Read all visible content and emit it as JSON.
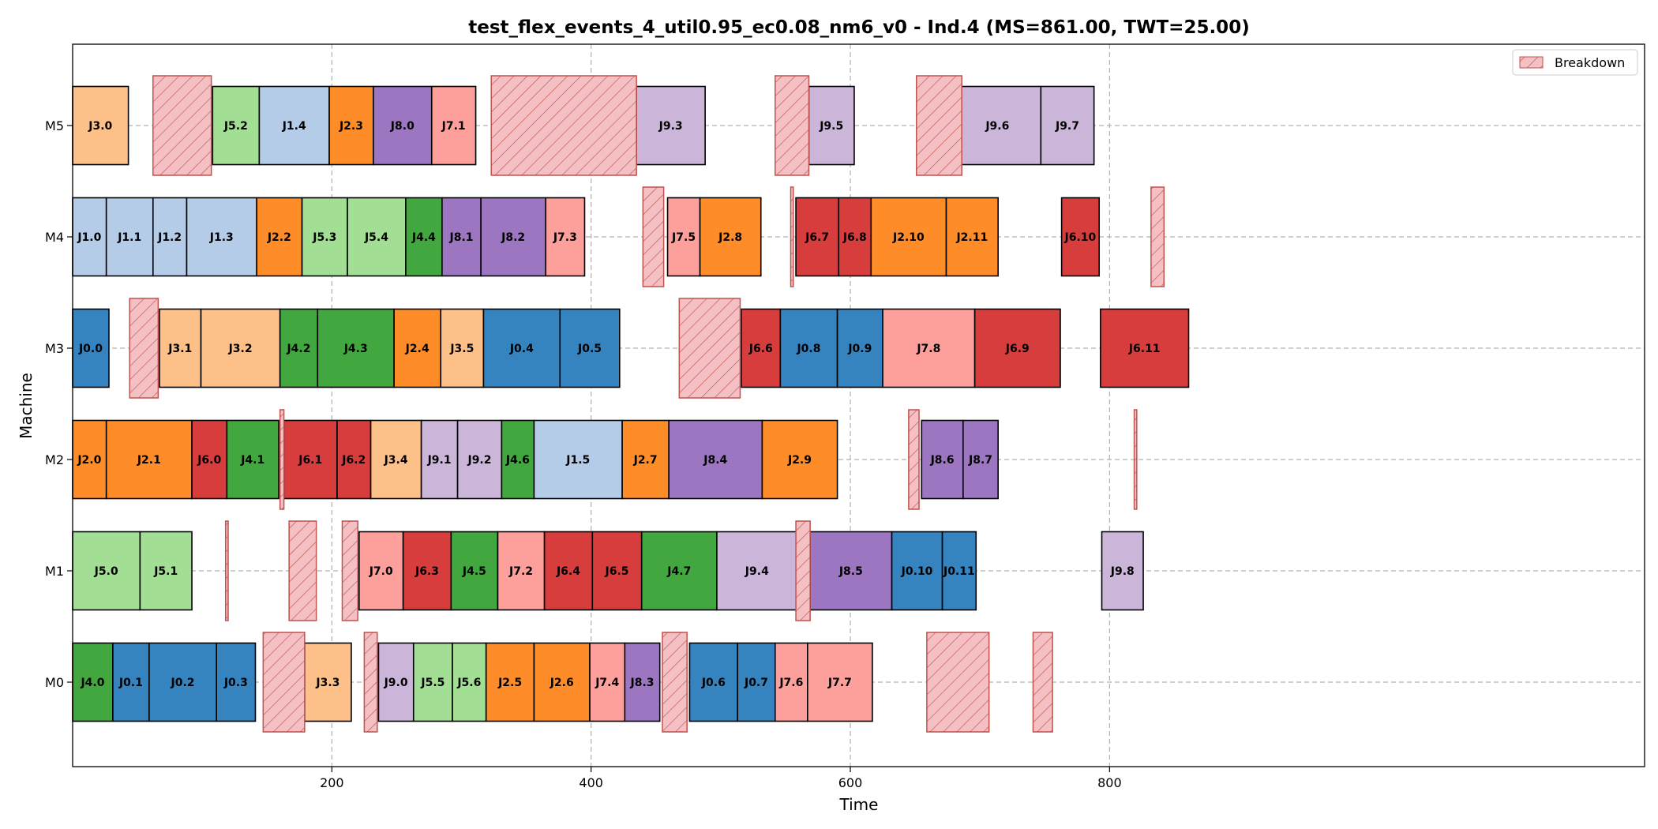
{
  "chart_data": {
    "type": "gantt",
    "title": "test_flex_events_4_util0.95_ec0.08_nm6_v0 - Ind.4 (MS=861.00, TWT=25.00)",
    "xlabel": "Time",
    "ylabel": "Machine",
    "xlim": [
      0,
      905
    ],
    "xticks": [
      200,
      400,
      600,
      800
    ],
    "machines": [
      "M0",
      "M1",
      "M2",
      "M3",
      "M4",
      "M5"
    ],
    "grid": true,
    "legend": {
      "position": "top-right",
      "label": "Breakdown"
    },
    "colors": {
      "J0": "#3584bf",
      "J1": "#b5cce9",
      "J2": "#fd8c29",
      "J3": "#fdc088",
      "J4": "#42a73f",
      "J5": "#a2de93",
      "J6": "#d83d3d",
      "J7": "#fd9f9b",
      "J8": "#9d76c2",
      "J9": "#cbb6da",
      "breakdown_fill": "#f4c0c3",
      "breakdown_edge": "#c0524f"
    },
    "operations": [
      {
        "m": "M0",
        "label": "J4.0",
        "job": "J4",
        "start": 0,
        "end": 31
      },
      {
        "m": "M0",
        "label": "J0.1",
        "job": "J0",
        "start": 31,
        "end": 59
      },
      {
        "m": "M0",
        "label": "J0.2",
        "job": "J0",
        "start": 59,
        "end": 111
      },
      {
        "m": "M0",
        "label": "J0.3",
        "job": "J0",
        "start": 111,
        "end": 141
      },
      {
        "m": "M0",
        "label": "J3.3",
        "job": "J3",
        "start": 179,
        "end": 215
      },
      {
        "m": "M0",
        "label": "J9.0",
        "job": "J9",
        "start": 236,
        "end": 263
      },
      {
        "m": "M0",
        "label": "J5.5",
        "job": "J5",
        "start": 263,
        "end": 293
      },
      {
        "m": "M0",
        "label": "J5.6",
        "job": "J5",
        "start": 293,
        "end": 319
      },
      {
        "m": "M0",
        "label": "J2.5",
        "job": "J2",
        "start": 319,
        "end": 356
      },
      {
        "m": "M0",
        "label": "J2.6",
        "job": "J2",
        "start": 356,
        "end": 399
      },
      {
        "m": "M0",
        "label": "J7.4",
        "job": "J7",
        "start": 399,
        "end": 426
      },
      {
        "m": "M0",
        "label": "J8.3",
        "job": "J8",
        "start": 426,
        "end": 453
      },
      {
        "m": "M0",
        "label": "J0.6",
        "job": "J0",
        "start": 476,
        "end": 513
      },
      {
        "m": "M0",
        "label": "J0.7",
        "job": "J0",
        "start": 513,
        "end": 542
      },
      {
        "m": "M0",
        "label": "J7.6",
        "job": "J7",
        "start": 542,
        "end": 567
      },
      {
        "m": "M0",
        "label": "J7.7",
        "job": "J7",
        "start": 567,
        "end": 617
      },
      {
        "m": "M1",
        "label": "J5.0",
        "job": "J5",
        "start": 0,
        "end": 52
      },
      {
        "m": "M1",
        "label": "J5.1",
        "job": "J5",
        "start": 52,
        "end": 92
      },
      {
        "m": "M1",
        "label": "J7.0",
        "job": "J7",
        "start": 221,
        "end": 255
      },
      {
        "m": "M1",
        "label": "J6.3",
        "job": "J6",
        "start": 255,
        "end": 292
      },
      {
        "m": "M1",
        "label": "J4.5",
        "job": "J4",
        "start": 292,
        "end": 328
      },
      {
        "m": "M1",
        "label": "J7.2",
        "job": "J7",
        "start": 328,
        "end": 364
      },
      {
        "m": "M1",
        "label": "J6.4",
        "job": "J6",
        "start": 364,
        "end": 401
      },
      {
        "m": "M1",
        "label": "J6.5",
        "job": "J6",
        "start": 401,
        "end": 439
      },
      {
        "m": "M1",
        "label": "J4.7",
        "job": "J4",
        "start": 439,
        "end": 497
      },
      {
        "m": "M1",
        "label": "J9.4",
        "job": "J9",
        "start": 497,
        "end": 559
      },
      {
        "m": "M1",
        "label": "J8.5",
        "job": "J8",
        "start": 569,
        "end": 632
      },
      {
        "m": "M1",
        "label": "J0.10",
        "job": "J0",
        "start": 632,
        "end": 671
      },
      {
        "m": "M1",
        "label": "J0.11",
        "job": "J0",
        "start": 671,
        "end": 697
      },
      {
        "m": "M1",
        "label": "J9.8",
        "job": "J9",
        "start": 794,
        "end": 826
      },
      {
        "m": "M2",
        "label": "J2.0",
        "job": "J2",
        "start": 0,
        "end": 26
      },
      {
        "m": "M2",
        "label": "J2.1",
        "job": "J2",
        "start": 26,
        "end": 92
      },
      {
        "m": "M2",
        "label": "J6.0",
        "job": "J6",
        "start": 92,
        "end": 119
      },
      {
        "m": "M2",
        "label": "J4.1",
        "job": "J4",
        "start": 119,
        "end": 159
      },
      {
        "m": "M2",
        "label": "J6.1",
        "job": "J6",
        "start": 163,
        "end": 204
      },
      {
        "m": "M2",
        "label": "J6.2",
        "job": "J6",
        "start": 204,
        "end": 230
      },
      {
        "m": "M2",
        "label": "J3.4",
        "job": "J3",
        "start": 230,
        "end": 269
      },
      {
        "m": "M2",
        "label": "J9.1",
        "job": "J9",
        "start": 269,
        "end": 297
      },
      {
        "m": "M2",
        "label": "J9.2",
        "job": "J9",
        "start": 297,
        "end": 331
      },
      {
        "m": "M2",
        "label": "J4.6",
        "job": "J4",
        "start": 331,
        "end": 356
      },
      {
        "m": "M2",
        "label": "J1.5",
        "job": "J1",
        "start": 356,
        "end": 424
      },
      {
        "m": "M2",
        "label": "J2.7",
        "job": "J2",
        "start": 424,
        "end": 460
      },
      {
        "m": "M2",
        "label": "J8.4",
        "job": "J8",
        "start": 460,
        "end": 532
      },
      {
        "m": "M2",
        "label": "J2.9",
        "job": "J2",
        "start": 532,
        "end": 590
      },
      {
        "m": "M2",
        "label": "J8.6",
        "job": "J8",
        "start": 655,
        "end": 687
      },
      {
        "m": "M2",
        "label": "J8.7",
        "job": "J8",
        "start": 687,
        "end": 714
      },
      {
        "m": "M3",
        "label": "J0.0",
        "job": "J0",
        "start": 0,
        "end": 28
      },
      {
        "m": "M3",
        "label": "J3.1",
        "job": "J3",
        "start": 67,
        "end": 99
      },
      {
        "m": "M3",
        "label": "J3.2",
        "job": "J3",
        "start": 99,
        "end": 160
      },
      {
        "m": "M3",
        "label": "J4.2",
        "job": "J4",
        "start": 160,
        "end": 189
      },
      {
        "m": "M3",
        "label": "J4.3",
        "job": "J4",
        "start": 189,
        "end": 248
      },
      {
        "m": "M3",
        "label": "J2.4",
        "job": "J2",
        "start": 248,
        "end": 284
      },
      {
        "m": "M3",
        "label": "J3.5",
        "job": "J3",
        "start": 284,
        "end": 317
      },
      {
        "m": "M3",
        "label": "J0.4",
        "job": "J0",
        "start": 317,
        "end": 376
      },
      {
        "m": "M3",
        "label": "J0.5",
        "job": "J0",
        "start": 376,
        "end": 422
      },
      {
        "m": "M3",
        "label": "J6.6",
        "job": "J6",
        "start": 516,
        "end": 546
      },
      {
        "m": "M3",
        "label": "J0.8",
        "job": "J0",
        "start": 546,
        "end": 590
      },
      {
        "m": "M3",
        "label": "J0.9",
        "job": "J0",
        "start": 590,
        "end": 625
      },
      {
        "m": "M3",
        "label": "J7.8",
        "job": "J7",
        "start": 625,
        "end": 696
      },
      {
        "m": "M3",
        "label": "J6.9",
        "job": "J6",
        "start": 696,
        "end": 762
      },
      {
        "m": "M3",
        "label": "J6.11",
        "job": "J6",
        "start": 793,
        "end": 861
      },
      {
        "m": "M4",
        "label": "J1.0",
        "job": "J1",
        "start": 0,
        "end": 26
      },
      {
        "m": "M4",
        "label": "J1.1",
        "job": "J1",
        "start": 26,
        "end": 62
      },
      {
        "m": "M4",
        "label": "J1.2",
        "job": "J1",
        "start": 62,
        "end": 88
      },
      {
        "m": "M4",
        "label": "J1.3",
        "job": "J1",
        "start": 88,
        "end": 142
      },
      {
        "m": "M4",
        "label": "J2.2",
        "job": "J2",
        "start": 142,
        "end": 177
      },
      {
        "m": "M4",
        "label": "J5.3",
        "job": "J5",
        "start": 177,
        "end": 212
      },
      {
        "m": "M4",
        "label": "J5.4",
        "job": "J5",
        "start": 212,
        "end": 257
      },
      {
        "m": "M4",
        "label": "J4.4",
        "job": "J4",
        "start": 257,
        "end": 285
      },
      {
        "m": "M4",
        "label": "J8.1",
        "job": "J8",
        "start": 285,
        "end": 315
      },
      {
        "m": "M4",
        "label": "J8.2",
        "job": "J8",
        "start": 315,
        "end": 365
      },
      {
        "m": "M4",
        "label": "J7.3",
        "job": "J7",
        "start": 365,
        "end": 395
      },
      {
        "m": "M4",
        "label": "J7.5",
        "job": "J7",
        "start": 459,
        "end": 484
      },
      {
        "m": "M4",
        "label": "J2.8",
        "job": "J2",
        "start": 484,
        "end": 531
      },
      {
        "m": "M4",
        "label": "J6.7",
        "job": "J6",
        "start": 558,
        "end": 591
      },
      {
        "m": "M4",
        "label": "J6.8",
        "job": "J6",
        "start": 591,
        "end": 616
      },
      {
        "m": "M4",
        "label": "J2.10",
        "job": "J2",
        "start": 616,
        "end": 674
      },
      {
        "m": "M4",
        "label": "J2.11",
        "job": "J2",
        "start": 674,
        "end": 714
      },
      {
        "m": "M4",
        "label": "J6.10",
        "job": "J6",
        "start": 763,
        "end": 792
      },
      {
        "m": "M5",
        "label": "J3.0",
        "job": "J3",
        "start": 0,
        "end": 43
      },
      {
        "m": "M5",
        "label": "J5.2",
        "job": "J5",
        "start": 108,
        "end": 144
      },
      {
        "m": "M5",
        "label": "J1.4",
        "job": "J1",
        "start": 144,
        "end": 198
      },
      {
        "m": "M5",
        "label": "J2.3",
        "job": "J2",
        "start": 198,
        "end": 232
      },
      {
        "m": "M5",
        "label": "J8.0",
        "job": "J8",
        "start": 232,
        "end": 277
      },
      {
        "m": "M5",
        "label": "J7.1",
        "job": "J7",
        "start": 277,
        "end": 311
      },
      {
        "m": "M5",
        "label": "J9.3",
        "job": "J9",
        "start": 435,
        "end": 488
      },
      {
        "m": "M5",
        "label": "J9.5",
        "job": "J9",
        "start": 568,
        "end": 603
      },
      {
        "m": "M5",
        "label": "J9.6",
        "job": "J9",
        "start": 680,
        "end": 747
      },
      {
        "m": "M5",
        "label": "J9.7",
        "job": "J9",
        "start": 747,
        "end": 788
      }
    ],
    "breakdowns": [
      {
        "m": "M0",
        "start": 147,
        "end": 179
      },
      {
        "m": "M0",
        "start": 225,
        "end": 235
      },
      {
        "m": "M0",
        "start": 455,
        "end": 474
      },
      {
        "m": "M0",
        "start": 659,
        "end": 707
      },
      {
        "m": "M0",
        "start": 741,
        "end": 756
      },
      {
        "m": "M1",
        "start": 118,
        "end": 120
      },
      {
        "m": "M1",
        "start": 167,
        "end": 188
      },
      {
        "m": "M1",
        "start": 208,
        "end": 220
      },
      {
        "m": "M1",
        "start": 558,
        "end": 569
      },
      {
        "m": "M2",
        "start": 160,
        "end": 163
      },
      {
        "m": "M2",
        "start": 645,
        "end": 653
      },
      {
        "m": "M2",
        "start": 819,
        "end": 821
      },
      {
        "m": "M3",
        "start": 44,
        "end": 66
      },
      {
        "m": "M3",
        "start": 468,
        "end": 515
      },
      {
        "m": "M4",
        "start": 440,
        "end": 456
      },
      {
        "m": "M4",
        "start": 554,
        "end": 556
      },
      {
        "m": "M4",
        "start": 832,
        "end": 842
      },
      {
        "m": "M5",
        "start": 62,
        "end": 107
      },
      {
        "m": "M5",
        "start": 323,
        "end": 435
      },
      {
        "m": "M5",
        "start": 542,
        "end": 568
      },
      {
        "m": "M5",
        "start": 651,
        "end": 686
      }
    ]
  }
}
